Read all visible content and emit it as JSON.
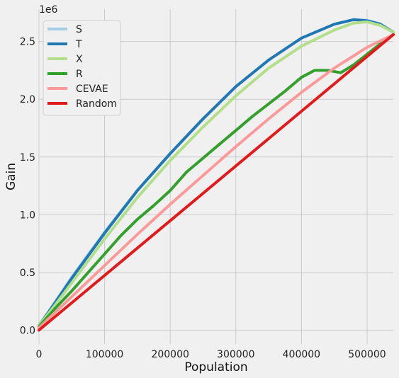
{
  "chart_data": {
    "type": "line",
    "title": "",
    "xlabel": "Population",
    "ylabel": "Gain",
    "y_offset_label": "1e6",
    "xlim": [
      0,
      540000
    ],
    "ylim": [
      -120000,
      2780000
    ],
    "x_ticks": [
      0,
      100000,
      200000,
      300000,
      400000,
      500000
    ],
    "x_tick_labels": [
      "0",
      "100000",
      "200000",
      "300000",
      "400000",
      "500000"
    ],
    "y_ticks": [
      0,
      500000,
      1000000,
      1500000,
      2000000,
      2500000
    ],
    "y_tick_labels": [
      "0.0",
      "0.5",
      "1.0",
      "1.5",
      "2.0",
      "2.5"
    ],
    "grid": true,
    "legend_position": "top-left",
    "series": [
      {
        "name": "S",
        "color": "#a6cee3",
        "width": 2,
        "x": [
          0,
          25000,
          50000,
          100000,
          150000,
          200000,
          250000,
          300000,
          350000,
          400000,
          450000,
          480000,
          500000,
          520000,
          540000
        ],
        "y": [
          40000,
          260000,
          470000,
          860000,
          1220000,
          1540000,
          1840000,
          2110000,
          2340000,
          2530000,
          2650000,
          2690000,
          2690000,
          2660000,
          2590000
        ]
      },
      {
        "name": "T",
        "color": "#1f78b4",
        "width": 4,
        "x": [
          0,
          25000,
          50000,
          100000,
          150000,
          200000,
          250000,
          300000,
          350000,
          400000,
          450000,
          480000,
          500000,
          520000,
          540000
        ],
        "y": [
          40000,
          240000,
          450000,
          840000,
          1210000,
          1530000,
          1830000,
          2110000,
          2340000,
          2530000,
          2650000,
          2690000,
          2680000,
          2650000,
          2580000
        ]
      },
      {
        "name": "X",
        "color": "#b2df8a",
        "width": 4,
        "x": [
          0,
          25000,
          50000,
          100000,
          150000,
          200000,
          250000,
          300000,
          350000,
          400000,
          450000,
          480000,
          500000,
          520000,
          540000
        ],
        "y": [
          40000,
          220000,
          410000,
          790000,
          1150000,
          1470000,
          1760000,
          2030000,
          2270000,
          2460000,
          2600000,
          2660000,
          2670000,
          2640000,
          2580000
        ]
      },
      {
        "name": "R",
        "color": "#33a02c",
        "width": 4,
        "x": [
          0,
          25000,
          50000,
          75000,
          100000,
          125000,
          150000,
          175000,
          200000,
          225000,
          250000,
          275000,
          300000,
          325000,
          350000,
          375000,
          400000,
          420000,
          440000,
          460000,
          480000,
          500000,
          520000,
          540000
        ],
        "y": [
          30000,
          190000,
          340000,
          500000,
          660000,
          820000,
          960000,
          1080000,
          1210000,
          1370000,
          1490000,
          1610000,
          1730000,
          1850000,
          1960000,
          2070000,
          2190000,
          2250000,
          2250000,
          2230000,
          2300000,
          2390000,
          2480000,
          2560000
        ]
      },
      {
        "name": "CEVAE",
        "color": "#fb9a99",
        "width": 4,
        "x": [
          0,
          50000,
          100000,
          150000,
          200000,
          250000,
          300000,
          350000,
          400000,
          450000,
          500000,
          540000
        ],
        "y": [
          20000,
          290000,
          560000,
          830000,
          1090000,
          1340000,
          1590000,
          1830000,
          2060000,
          2270000,
          2450000,
          2560000
        ]
      },
      {
        "name": "Random",
        "color": "#e31a1c",
        "width": 4,
        "x": [
          0,
          540000
        ],
        "y": [
          0,
          2560000
        ]
      }
    ]
  }
}
